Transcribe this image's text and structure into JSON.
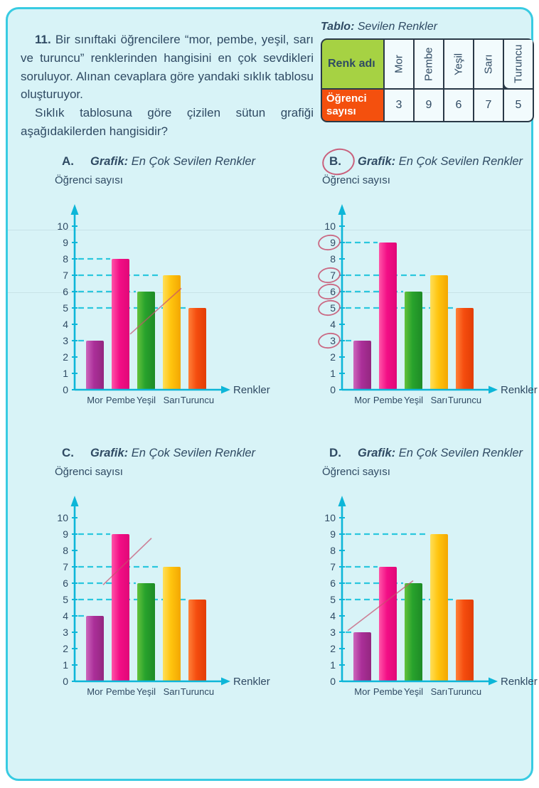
{
  "page": {
    "background": "#d8f3f7",
    "border_color": "#38cbe2",
    "text_color": "#2f4a63",
    "axis_color": "#0db6d8",
    "dash_color": "#2bc7de",
    "pen_color": "#c8506e"
  },
  "question": {
    "number": "11.",
    "p1": "Bir sınıftaki öğrencilere “mor, pembe, yeşil, sarı ve turuncu” renklerinden hangisini en çok sevdikleri soruluyor. Alınan cevaplara göre yandaki sıklık tablosu oluşturuyor.",
    "p2": "Sıklık tablosuna göre çizilen sütun grafiği aşağıdakilerden hangisidir?"
  },
  "table": {
    "title_label": "Tablo:",
    "title_text": "Sevilen Renkler",
    "header_label": "Renk adı",
    "row_label": "Öğrenci sayısı",
    "columns": [
      "Mor",
      "Pembe",
      "Yeşil",
      "Sarı",
      "Turuncu"
    ],
    "values": [
      "3",
      "9",
      "6",
      "7",
      "5"
    ],
    "header_bg": "#a6d243",
    "row_bg": "#f4500e"
  },
  "chart_shared": {
    "title_label": "Grafik:",
    "title_text": "En Çok Sevilen Renkler",
    "ylabel": "Öğrenci sayısı",
    "xlabel": "Renkler",
    "categories": [
      "Mor",
      "Pembe",
      "Yeşil",
      "Sarı",
      "Turuncu"
    ],
    "category_slugs": [
      "mor",
      "pembe",
      "yesil",
      "sari",
      "turuncu"
    ],
    "ylim": [
      0,
      10
    ],
    "bar_colors": [
      [
        "#cc66bc",
        "#ab2f99",
        "#93277f"
      ],
      [
        "#ff55a8",
        "#f30e86",
        "#e00877"
      ],
      [
        "#63c23c",
        "#28a22c",
        "#1e8b26"
      ],
      [
        "#ffdf5a",
        "#ffc40e",
        "#f3a702"
      ],
      [
        "#ff8038",
        "#f54d0f",
        "#e23d05"
      ]
    ]
  },
  "chart_data": [
    {
      "type": "bar",
      "option": "A.",
      "title": "Grafik: En Çok Sevilen Renkler",
      "xlabel": "Renkler",
      "ylabel": "Öğrenci sayısı",
      "categories": [
        "Mor",
        "Pembe",
        "Yeşil",
        "Sarı",
        "Turuncu"
      ],
      "values": [
        3,
        8,
        6,
        7,
        5
      ],
      "ylim": [
        0,
        10
      ],
      "annotations": {
        "pen_line": [
          78,
          3.4,
          150,
          6.2
        ]
      }
    },
    {
      "type": "bar",
      "option": "B.",
      "title": "Grafik: En Çok Sevilen Renkler",
      "xlabel": "Renkler",
      "ylabel": "Öğrenci sayısı",
      "categories": [
        "Mor",
        "Pembe",
        "Yeşil",
        "Sarı",
        "Turuncu"
      ],
      "values": [
        3,
        9,
        6,
        7,
        5
      ],
      "ylim": [
        0,
        10
      ],
      "annotations": {
        "option_circled": true,
        "tick_circles": [
          9,
          7,
          6,
          5,
          3
        ]
      }
    },
    {
      "type": "bar",
      "option": "C.",
      "title": "Grafik: En Çok Sevilen Renkler",
      "xlabel": "Renkler",
      "ylabel": "Öğrenci sayısı",
      "categories": [
        "Mor",
        "Pembe",
        "Yeşil",
        "Sarı",
        "Turuncu"
      ],
      "values": [
        4,
        9,
        6,
        7,
        5
      ],
      "ylim": [
        0,
        10
      ],
      "annotations": {
        "pen_line": [
          40,
          5.9,
          108,
          8.75
        ]
      }
    },
    {
      "type": "bar",
      "option": "D.",
      "title": "Grafik: En Çok Sevilen Renkler",
      "xlabel": "Renkler",
      "ylabel": "Öğrenci sayısı",
      "categories": [
        "Mor",
        "Pembe",
        "Yeşil",
        "Sarı",
        "Turuncu"
      ],
      "values": [
        3,
        7,
        6,
        9,
        5
      ],
      "ylim": [
        0,
        10
      ],
      "annotations": {
        "pen_line": [
          8,
          3.1,
          100,
          6.15
        ]
      }
    }
  ]
}
